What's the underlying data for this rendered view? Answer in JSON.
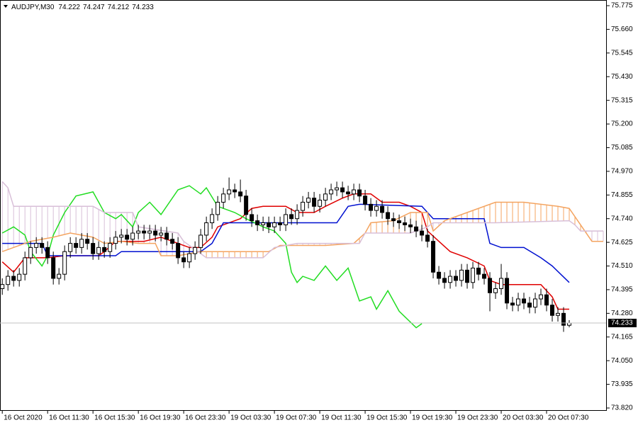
{
  "chart_data": {
    "type": "candlestick",
    "title": "AUDJPY,M30",
    "candles": {
      "open": [
        74.4,
        74.42,
        74.46,
        74.44,
        74.47,
        74.55,
        74.6,
        74.62,
        74.6,
        74.55,
        74.45,
        74.47,
        74.58,
        74.62,
        74.6,
        74.64,
        74.62,
        74.57,
        74.6,
        74.58,
        74.62,
        74.65,
        74.66,
        74.64,
        74.67,
        74.68,
        74.67,
        74.68,
        74.66,
        74.67,
        74.64,
        74.62,
        74.55,
        74.53,
        74.57,
        74.6,
        74.66,
        74.72,
        74.76,
        74.82,
        74.86,
        74.88,
        74.87,
        74.85,
        74.76,
        74.73,
        74.71,
        74.72,
        74.7,
        74.72,
        74.71,
        74.76,
        74.74,
        74.78,
        74.82,
        74.84,
        74.8,
        74.83,
        74.86,
        74.88,
        74.89,
        74.87,
        74.86,
        74.88,
        74.85,
        74.81,
        74.78,
        74.8,
        74.77,
        74.74,
        74.73,
        74.72,
        74.71,
        74.7,
        74.68,
        74.66,
        74.63,
        74.48,
        74.45,
        74.43,
        74.46,
        74.44,
        74.49,
        74.43,
        74.5,
        74.47,
        74.45,
        74.38,
        74.4,
        74.45,
        74.33,
        74.32,
        74.35,
        74.33,
        74.31,
        74.35,
        74.37,
        74.32,
        74.27,
        74.28,
        74.222
      ],
      "high": [
        74.45,
        74.49,
        74.49,
        74.5,
        74.58,
        74.63,
        74.65,
        74.65,
        74.63,
        74.58,
        74.5,
        74.61,
        74.65,
        74.65,
        74.67,
        74.67,
        74.65,
        74.63,
        74.63,
        74.65,
        74.68,
        74.69,
        74.69,
        74.7,
        74.71,
        74.71,
        74.71,
        74.71,
        74.7,
        74.7,
        74.67,
        74.65,
        74.58,
        74.6,
        74.63,
        74.69,
        74.75,
        74.79,
        74.85,
        74.89,
        74.94,
        74.91,
        74.93,
        74.88,
        74.79,
        74.76,
        74.75,
        74.75,
        74.75,
        74.75,
        74.79,
        74.79,
        74.81,
        74.85,
        74.87,
        74.87,
        74.86,
        74.89,
        74.91,
        74.92,
        74.92,
        74.9,
        74.91,
        74.91,
        74.88,
        74.84,
        74.83,
        74.83,
        74.8,
        74.77,
        74.76,
        74.75,
        74.74,
        74.73,
        74.71,
        74.69,
        74.66,
        74.51,
        74.48,
        74.49,
        74.49,
        74.52,
        74.52,
        74.53,
        74.53,
        74.5,
        74.48,
        74.43,
        74.52,
        74.48,
        74.36,
        74.38,
        74.38,
        74.36,
        74.38,
        74.4,
        74.4,
        74.35,
        74.31,
        74.31,
        74.247
      ],
      "low": [
        74.37,
        74.39,
        74.41,
        74.41,
        74.44,
        74.52,
        74.57,
        74.57,
        74.52,
        74.42,
        74.42,
        74.44,
        74.55,
        74.57,
        74.57,
        74.59,
        74.54,
        74.54,
        74.55,
        74.55,
        74.59,
        74.62,
        74.61,
        74.61,
        74.64,
        74.64,
        74.64,
        74.63,
        74.63,
        74.61,
        74.59,
        74.52,
        74.5,
        74.5,
        74.54,
        74.57,
        74.63,
        74.69,
        74.73,
        74.79,
        74.83,
        74.84,
        74.82,
        74.73,
        74.7,
        74.68,
        74.68,
        74.67,
        74.67,
        74.68,
        74.68,
        74.71,
        74.71,
        74.75,
        74.79,
        74.77,
        74.77,
        74.8,
        74.83,
        74.85,
        74.84,
        74.83,
        74.83,
        74.82,
        74.78,
        74.75,
        74.75,
        74.74,
        74.71,
        74.7,
        74.69,
        74.68,
        74.67,
        74.65,
        74.63,
        74.6,
        74.45,
        74.42,
        74.4,
        74.4,
        74.41,
        74.41,
        74.4,
        74.4,
        74.44,
        74.42,
        74.29,
        74.35,
        74.37,
        74.3,
        74.29,
        74.29,
        74.3,
        74.28,
        74.28,
        74.32,
        74.29,
        74.24,
        74.24,
        74.19,
        74.212
      ],
      "close": [
        74.42,
        74.46,
        74.44,
        74.47,
        74.55,
        74.6,
        74.62,
        74.6,
        74.55,
        74.45,
        74.47,
        74.58,
        74.62,
        74.6,
        74.64,
        74.62,
        74.57,
        74.6,
        74.58,
        74.62,
        74.65,
        74.66,
        74.64,
        74.67,
        74.68,
        74.67,
        74.68,
        74.66,
        74.67,
        74.64,
        74.62,
        74.55,
        74.53,
        74.57,
        74.6,
        74.66,
        74.72,
        74.76,
        74.82,
        74.86,
        74.88,
        74.87,
        74.85,
        74.76,
        74.73,
        74.71,
        74.72,
        74.7,
        74.72,
        74.71,
        74.76,
        74.74,
        74.78,
        74.82,
        74.84,
        74.8,
        74.83,
        74.86,
        74.88,
        74.89,
        74.87,
        74.86,
        74.88,
        74.85,
        74.81,
        74.78,
        74.8,
        74.77,
        74.74,
        74.73,
        74.72,
        74.71,
        74.7,
        74.68,
        74.66,
        74.63,
        74.48,
        74.45,
        74.43,
        74.46,
        74.44,
        74.49,
        74.43,
        74.5,
        74.47,
        74.45,
        74.38,
        74.4,
        74.45,
        74.33,
        74.32,
        74.35,
        74.33,
        74.31,
        74.35,
        74.37,
        74.32,
        74.27,
        74.28,
        74.222,
        74.233
      ]
    },
    "up_color": "#ffffff",
    "down_color": "#000000",
    "lines": [
      {
        "color": "#e00000",
        "x": [
          0,
          2,
          4,
          8,
          11,
          17,
          18,
          20,
          25,
          28,
          31,
          33,
          35,
          37,
          38,
          42,
          44,
          46,
          50,
          52,
          55,
          57,
          60,
          62,
          65,
          67,
          70,
          72,
          74,
          75,
          77,
          79,
          82,
          85,
          86,
          88,
          95,
          97,
          98,
          100
        ],
        "values": [
          74.53,
          74.48,
          74.55,
          74.55,
          74.56,
          74.56,
          74.58,
          74.63,
          74.63,
          74.65,
          74.62,
          74.6,
          74.6,
          74.65,
          74.7,
          74.74,
          74.79,
          74.8,
          74.8,
          74.77,
          74.77,
          74.8,
          74.84,
          74.86,
          74.86,
          74.82,
          74.82,
          74.8,
          74.77,
          74.68,
          74.63,
          74.58,
          74.55,
          74.51,
          74.44,
          74.42,
          74.42,
          74.36,
          74.3,
          74.3
        ]
      },
      {
        "color": "#0010d0",
        "x": [
          0,
          7,
          8,
          20,
          21,
          35,
          37,
          39,
          59,
          61,
          63,
          74,
          75,
          76,
          85,
          86,
          88,
          92,
          95,
          97,
          100
        ],
        "values": [
          74.62,
          74.62,
          74.56,
          74.56,
          74.58,
          74.58,
          74.62,
          74.72,
          74.72,
          74.8,
          74.81,
          74.8,
          74.77,
          74.74,
          74.74,
          74.62,
          74.6,
          74.6,
          74.55,
          74.51,
          74.43
        ]
      },
      {
        "color": "#22dd22",
        "x": [
          0,
          2,
          4,
          5,
          7,
          8,
          9,
          11,
          13,
          16,
          18,
          20,
          21,
          23,
          24,
          26,
          28,
          31,
          33,
          35,
          36,
          38,
          41,
          43,
          46,
          48,
          50,
          51,
          52,
          53,
          55,
          57,
          59,
          61,
          63,
          65,
          66,
          68,
          70,
          73,
          74
        ],
        "values": [
          74.67,
          74.7,
          74.66,
          74.58,
          74.51,
          74.56,
          74.66,
          74.77,
          74.85,
          74.87,
          74.77,
          74.74,
          74.76,
          74.7,
          74.77,
          74.82,
          74.76,
          74.88,
          74.9,
          74.86,
          74.89,
          74.8,
          74.77,
          74.74,
          74.7,
          74.68,
          74.62,
          74.48,
          74.43,
          74.46,
          74.44,
          74.51,
          74.44,
          74.5,
          74.34,
          74.36,
          74.3,
          74.39,
          74.29,
          74.21,
          74.23
        ]
      },
      {
        "color": "#f4a460",
        "x": [
          0,
          5,
          9,
          12,
          16,
          18,
          21,
          24,
          27,
          28,
          31,
          35,
          46,
          47,
          49,
          57,
          62,
          64,
          65,
          69,
          72,
          75,
          76,
          78,
          82,
          87,
          92,
          98,
          100,
          102,
          104,
          106
        ],
        "values": [
          74.58,
          74.63,
          74.65,
          74.67,
          74.65,
          74.62,
          74.63,
          74.62,
          74.62,
          74.56,
          74.56,
          74.58,
          74.58,
          74.58,
          74.61,
          74.61,
          74.62,
          74.67,
          74.72,
          74.73,
          74.77,
          74.77,
          74.68,
          74.73,
          74.77,
          74.82,
          74.82,
          74.8,
          74.79,
          74.71,
          74.63,
          74.63
        ]
      },
      {
        "color": "#d8bfd8",
        "x": [
          0,
          1,
          2,
          16,
          18,
          23,
          24,
          31,
          32,
          36,
          46,
          48,
          52,
          62,
          63,
          64,
          72,
          75,
          76,
          87,
          100,
          101,
          102,
          106
        ],
        "values": [
          74.92,
          74.89,
          74.8,
          74.8,
          74.77,
          74.77,
          74.7,
          74.67,
          74.63,
          74.55,
          74.55,
          74.6,
          74.62,
          74.62,
          74.62,
          74.67,
          74.67,
          74.7,
          74.72,
          74.72,
          74.73,
          74.71,
          74.68,
          74.68
        ]
      }
    ],
    "cloud": [
      3,
      4
    ],
    "xlim": [
      -0.4,
      106.5
    ],
    "xticks": [
      {
        "value": 0,
        "label": "16 Oct 2020"
      },
      {
        "value": 8,
        "label": "16 Oct 11:30"
      },
      {
        "value": 16,
        "label": "16 Oct 15:30"
      },
      {
        "value": 24,
        "label": "16 Oct 19:30"
      },
      {
        "value": 32,
        "label": "16 Oct 23:30"
      },
      {
        "value": 40,
        "label": "19 Oct 03:30"
      },
      {
        "value": 48,
        "label": "19 Oct 07:30"
      },
      {
        "value": 56,
        "label": "19 Oct 11:30"
      },
      {
        "value": 64,
        "label": "19 Oct 15:30"
      },
      {
        "value": 72,
        "label": "19 Oct 19:30"
      },
      {
        "value": 80,
        "label": "19 Oct 23:30"
      },
      {
        "value": 88,
        "label": "20 Oct 03:30"
      },
      {
        "value": 96,
        "label": "20 Oct 07:30"
      }
    ],
    "ylim": [
      73.82,
      75.775
    ],
    "yticks": [
      75.775,
      {
        "value": 75.66,
        "label": "75.660"
      },
      75.545,
      {
        "value": 75.43,
        "label": "75.430"
      },
      75.315,
      {
        "value": 75.2,
        "label": "75.200"
      },
      75.085,
      {
        "value": 74.97,
        "label": "74.970"
      },
      74.855,
      {
        "value": 74.74,
        "label": "74.740"
      },
      74.625,
      {
        "value": 74.51,
        "label": "74.510"
      },
      74.395,
      {
        "value": 74.28,
        "label": "74.280"
      },
      74.165,
      {
        "value": 74.05,
        "label": "74.050"
      },
      73.935,
      {
        "value": 73.82,
        "label": "73.820"
      }
    ],
    "grid": false
  }
}
